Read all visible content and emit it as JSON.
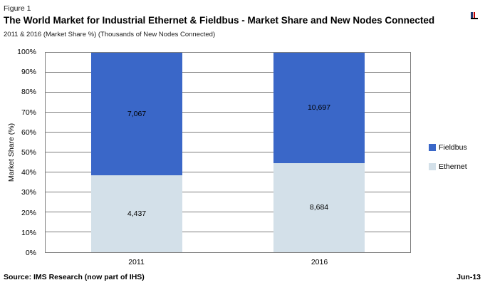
{
  "header": {
    "figure_label": "Figure 1",
    "title": "The World Market for Industrial Ethernet & Fieldbus - Market Share and New Nodes Connected",
    "subtitle": "2011 & 2016 (Market Share %) (Thousands of New Nodes Connected)"
  },
  "footer": {
    "source": "Source: IMS Research (now part of IHS)",
    "date": "Jun-13"
  },
  "colors": {
    "fieldbus": "#3A67C8",
    "ethernet": "#D3E0E9",
    "gridline": "#7F7F7F",
    "plot_border": "#7F7F7F",
    "text": "#000000"
  },
  "chart_data": {
    "type": "bar",
    "subtype": "100%-stacked-column",
    "title": "The World Market for Industrial Ethernet & Fieldbus - Market Share and New Nodes Connected",
    "units": "Thousands of New Nodes Connected",
    "categories": [
      "2011",
      "2016"
    ],
    "series": [
      {
        "name": "Fieldbus",
        "values": [
          7067,
          10697
        ],
        "value_labels": [
          "7,067",
          "10,697"
        ],
        "share_pct": [
          61.4,
          55.2
        ],
        "color": "#3A67C8"
      },
      {
        "name": "Ethernet",
        "values": [
          4437,
          8684
        ],
        "value_labels": [
          "4,437",
          "8,684"
        ],
        "share_pct": [
          38.6,
          44.8
        ],
        "color": "#D3E0E9"
      }
    ],
    "ylabel": "Market Share (%)",
    "ylim": [
      0,
      100
    ],
    "yticks": [
      "0%",
      "10%",
      "20%",
      "30%",
      "40%",
      "50%",
      "60%",
      "70%",
      "80%",
      "90%",
      "100%"
    ],
    "grid": "horizontal",
    "legend": {
      "position": "right",
      "entries": [
        "Fieldbus",
        "Ethernet"
      ]
    }
  }
}
